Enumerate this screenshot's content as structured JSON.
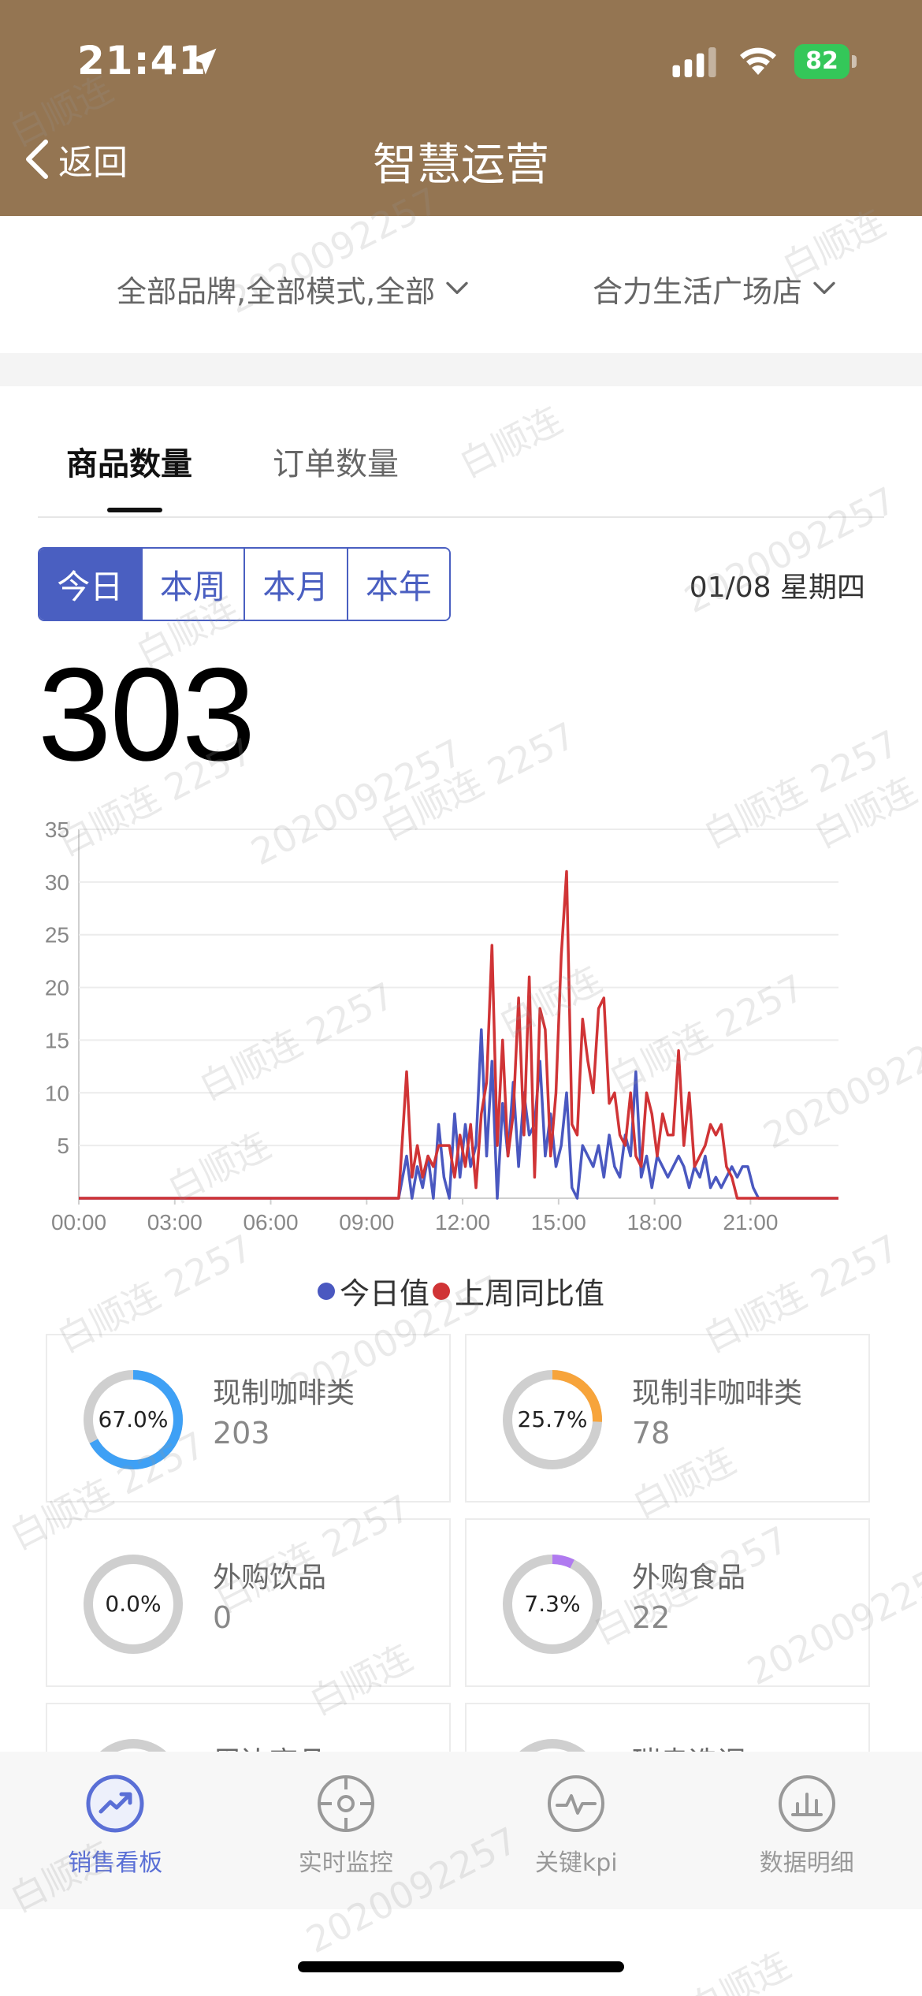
{
  "status_bar": {
    "time": "21:41",
    "battery": "82"
  },
  "nav_bar": {
    "back_label": "返回",
    "title": "智慧运营"
  },
  "filters": {
    "brand_mode": "全部品牌,全部模式,全部",
    "store": "合力生活广场店"
  },
  "tabs": [
    {
      "label": "商品数量",
      "active": true
    },
    {
      "label": "订单数量",
      "active": false
    }
  ],
  "periods": [
    {
      "label": "今日",
      "active": true
    },
    {
      "label": "本周",
      "active": false
    },
    {
      "label": "本月",
      "active": false
    },
    {
      "label": "本年",
      "active": false
    }
  ],
  "date_label": "01/08 星期四",
  "total": "303",
  "chart_data": {
    "type": "line",
    "title": "",
    "xlabel": "",
    "ylabel": "",
    "y_ticks": [
      "5",
      "10",
      "15",
      "20",
      "25",
      "30",
      "35"
    ],
    "x_ticks": [
      "00:00",
      "03:00",
      "06:00",
      "09:00",
      "12:00",
      "15:00",
      "18:00",
      "21:00"
    ],
    "ylim": [
      0,
      35
    ],
    "xlim_minutes": [
      0,
      1425
    ],
    "grid": true,
    "legend_placement": "bottom-center",
    "series": [
      {
        "name": "今日值",
        "color": "#4a58c0",
        "points": [
          [
            0,
            0
          ],
          [
            600,
            0
          ],
          [
            615,
            4
          ],
          [
            625,
            0
          ],
          [
            635,
            3
          ],
          [
            645,
            1
          ],
          [
            655,
            4
          ],
          [
            665,
            0
          ],
          [
            675,
            7
          ],
          [
            685,
            2
          ],
          [
            695,
            0
          ],
          [
            705,
            8
          ],
          [
            715,
            2
          ],
          [
            725,
            7
          ],
          [
            735,
            3
          ],
          [
            745,
            5
          ],
          [
            755,
            16
          ],
          [
            765,
            4
          ],
          [
            775,
            13
          ],
          [
            785,
            0
          ],
          [
            795,
            9
          ],
          [
            805,
            4
          ],
          [
            815,
            11
          ],
          [
            825,
            3
          ],
          [
            835,
            10
          ],
          [
            845,
            6
          ],
          [
            855,
            7
          ],
          [
            865,
            13
          ],
          [
            875,
            4
          ],
          [
            885,
            8
          ],
          [
            895,
            3
          ],
          [
            905,
            5
          ],
          [
            915,
            10
          ],
          [
            925,
            1
          ],
          [
            935,
            0
          ],
          [
            945,
            5
          ],
          [
            955,
            4
          ],
          [
            965,
            3
          ],
          [
            975,
            5
          ],
          [
            985,
            2
          ],
          [
            995,
            6
          ],
          [
            1005,
            3
          ],
          [
            1015,
            2
          ],
          [
            1025,
            6
          ],
          [
            1035,
            4
          ],
          [
            1045,
            12
          ],
          [
            1055,
            2
          ],
          [
            1065,
            4
          ],
          [
            1075,
            1
          ],
          [
            1085,
            4
          ],
          [
            1095,
            3
          ],
          [
            1105,
            2
          ],
          [
            1115,
            3
          ],
          [
            1125,
            4
          ],
          [
            1135,
            3
          ],
          [
            1145,
            1
          ],
          [
            1155,
            3
          ],
          [
            1165,
            2
          ],
          [
            1175,
            4
          ],
          [
            1185,
            1
          ],
          [
            1195,
            2
          ],
          [
            1205,
            1
          ],
          [
            1215,
            2
          ],
          [
            1225,
            3
          ],
          [
            1235,
            2
          ],
          [
            1245,
            3
          ],
          [
            1255,
            3
          ],
          [
            1265,
            1
          ],
          [
            1275,
            0
          ],
          [
            1425,
            0
          ]
        ]
      },
      {
        "name": "上周同比值",
        "color": "#d03436",
        "points": [
          [
            0,
            0
          ],
          [
            600,
            0
          ],
          [
            615,
            12
          ],
          [
            625,
            2
          ],
          [
            635,
            5
          ],
          [
            645,
            2
          ],
          [
            655,
            4
          ],
          [
            665,
            3
          ],
          [
            675,
            5
          ],
          [
            685,
            5
          ],
          [
            695,
            5
          ],
          [
            705,
            2
          ],
          [
            715,
            6
          ],
          [
            725,
            3
          ],
          [
            735,
            7
          ],
          [
            745,
            1
          ],
          [
            755,
            8
          ],
          [
            765,
            11
          ],
          [
            775,
            24
          ],
          [
            785,
            5
          ],
          [
            795,
            15
          ],
          [
            805,
            4
          ],
          [
            815,
            8
          ],
          [
            825,
            19
          ],
          [
            835,
            6
          ],
          [
            845,
            21
          ],
          [
            855,
            2
          ],
          [
            865,
            18
          ],
          [
            875,
            16
          ],
          [
            885,
            4
          ],
          [
            895,
            10
          ],
          [
            905,
            23
          ],
          [
            915,
            31
          ],
          [
            925,
            7
          ],
          [
            935,
            6
          ],
          [
            945,
            17
          ],
          [
            955,
            13
          ],
          [
            965,
            10
          ],
          [
            975,
            18
          ],
          [
            985,
            19
          ],
          [
            995,
            9
          ],
          [
            1005,
            10
          ],
          [
            1015,
            6
          ],
          [
            1025,
            5
          ],
          [
            1035,
            10
          ],
          [
            1045,
            4
          ],
          [
            1055,
            3
          ],
          [
            1065,
            10
          ],
          [
            1075,
            8
          ],
          [
            1085,
            4
          ],
          [
            1095,
            8
          ],
          [
            1105,
            6
          ],
          [
            1115,
            6
          ],
          [
            1125,
            14
          ],
          [
            1135,
            5
          ],
          [
            1145,
            10
          ],
          [
            1155,
            3
          ],
          [
            1165,
            4
          ],
          [
            1175,
            5
          ],
          [
            1185,
            7
          ],
          [
            1195,
            6
          ],
          [
            1205,
            7
          ],
          [
            1215,
            3
          ],
          [
            1225,
            2
          ],
          [
            1235,
            0
          ],
          [
            1425,
            0
          ]
        ]
      }
    ]
  },
  "categories": [
    {
      "name": "现制咖啡类",
      "value": "203",
      "pct_label": "67.0%",
      "pct": 0.67,
      "color": "#3ea0f5"
    },
    {
      "name": "现制非咖啡类",
      "value": "78",
      "pct_label": "25.7%",
      "pct": 0.257,
      "color": "#f7a43b"
    },
    {
      "name": "外购饮品",
      "value": "0",
      "pct_label": "0.0%",
      "pct": 0.0,
      "color": "#9b6cf0"
    },
    {
      "name": "外购食品",
      "value": "22",
      "pct_label": "7.3%",
      "pct": 0.073,
      "color": "#b07af0"
    },
    {
      "name": "周边商品",
      "value": ""
    },
    {
      "name": "瑞幸选调",
      "value": ""
    }
  ],
  "bottom_nav": [
    {
      "label": "销售看板",
      "icon": "trend-up-icon",
      "active": true
    },
    {
      "label": "实时监控",
      "icon": "crosshair-icon",
      "active": false
    },
    {
      "label": "关键kpi",
      "icon": "pulse-icon",
      "active": false
    },
    {
      "label": "数据明细",
      "icon": "bar-chart-icon",
      "active": false
    }
  ],
  "watermark": {
    "name": "白顺连",
    "id": "2020092257",
    "combo": "白顺连 2257"
  }
}
